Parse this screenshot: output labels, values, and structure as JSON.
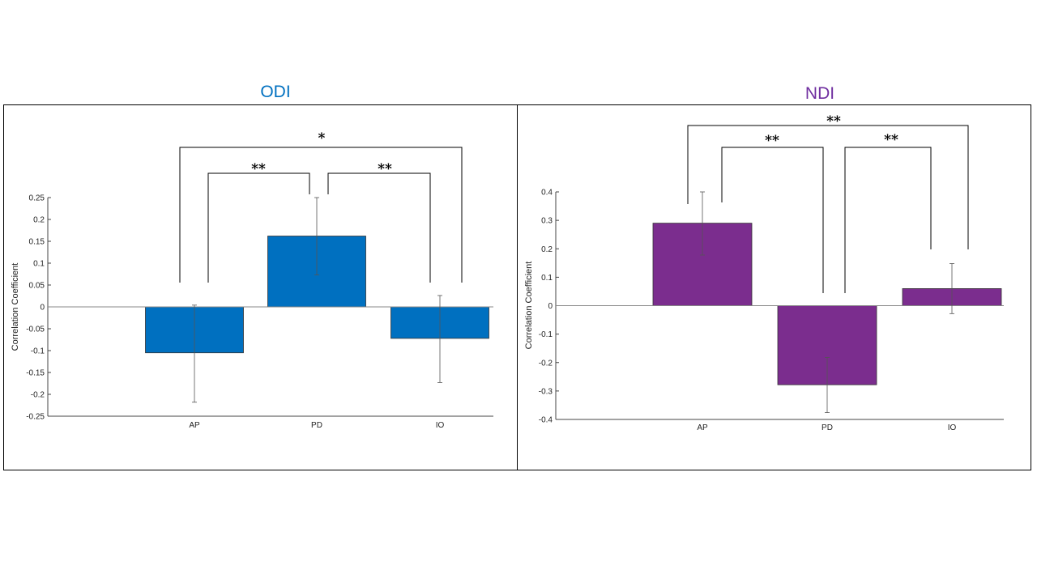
{
  "titles": {
    "left": "ODI",
    "right": "NDI"
  },
  "colors": {
    "odi": "#0070c0",
    "ndi": "#7b2d8e"
  },
  "chart_data": [
    {
      "type": "bar",
      "title": "ODI",
      "ylabel": "Correlation Coefficient",
      "categories": [
        "AP",
        "PD",
        "IO"
      ],
      "values": [
        -0.105,
        0.162,
        -0.072
      ],
      "error_low": [
        -0.218,
        0.073,
        -0.173
      ],
      "error_high": [
        0.004,
        0.25,
        0.026
      ],
      "ylim": [
        -0.25,
        0.25
      ],
      "yticks": [
        0.25,
        0.2,
        0.15,
        0.1,
        0.05,
        0,
        -0.05,
        -0.1,
        -0.15,
        -0.2,
        -0.25
      ],
      "ytick_labels": [
        "0.25",
        "0.2",
        "0.15",
        "0.1",
        "0.05",
        "0",
        "-0.05",
        "-0.1",
        "-0.15",
        "-0.2",
        "-0.25"
      ],
      "color": "#0070c0",
      "significance": [
        {
          "from": "AP",
          "to": "PD",
          "label": "**"
        },
        {
          "from": "PD",
          "to": "IO",
          "label": "**"
        },
        {
          "from": "AP",
          "to": "IO",
          "label": "*"
        }
      ]
    },
    {
      "type": "bar",
      "title": "NDI",
      "ylabel": "Correlation Coefficient",
      "categories": [
        "AP",
        "PD",
        "IO"
      ],
      "values": [
        0.29,
        -0.278,
        0.06
      ],
      "error_low": [
        0.178,
        -0.376,
        -0.028
      ],
      "error_high": [
        0.4,
        -0.182,
        0.148
      ],
      "ylim": [
        -0.4,
        0.4
      ],
      "yticks": [
        0.4,
        0.3,
        0.2,
        0.1,
        0,
        -0.1,
        -0.2,
        -0.3,
        -0.4
      ],
      "ytick_labels": [
        "0.4",
        "0.3",
        "0.2",
        "0.1",
        "0",
        "-0.1",
        "-0.2",
        "-0.3",
        "-0.4"
      ],
      "color": "#7b2d8e",
      "significance": [
        {
          "from": "AP",
          "to": "PD",
          "label": "**"
        },
        {
          "from": "PD",
          "to": "IO",
          "label": "**"
        },
        {
          "from": "AP",
          "to": "IO",
          "label": "**"
        }
      ]
    }
  ]
}
